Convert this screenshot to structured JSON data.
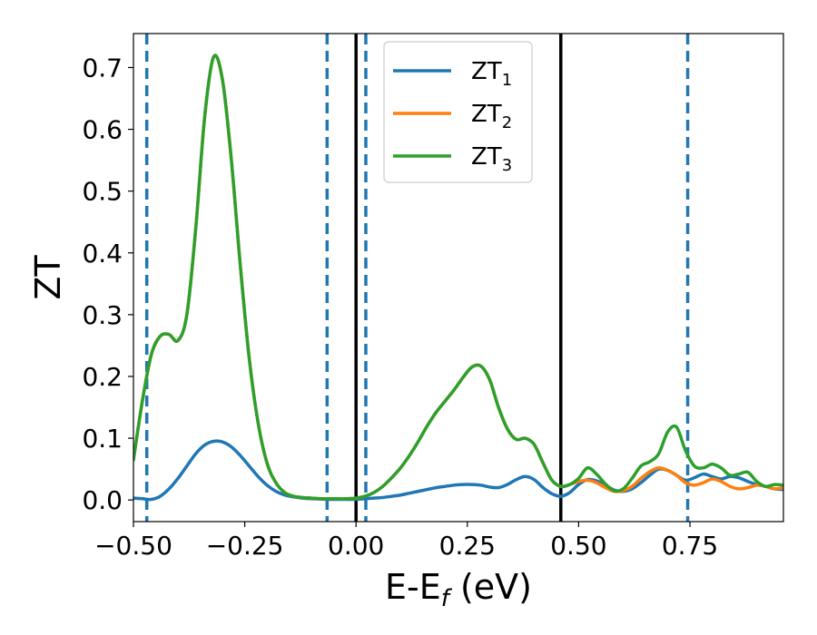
{
  "chart_data": {
    "type": "line",
    "xlabel_main": "E-E",
    "xlabel_sub": "f",
    "xlabel_tail": " (eV)",
    "ylabel": "ZT",
    "xlim": [
      -0.5,
      0.96
    ],
    "ylim": [
      -0.035,
      0.755
    ],
    "grid": false,
    "legend_position": "top-center",
    "x_ticks": [
      -0.5,
      -0.25,
      0.0,
      0.25,
      0.5,
      0.75
    ],
    "x_tick_labels": [
      "−0.50",
      "−0.25",
      "0.00",
      "0.25",
      "0.50",
      "0.75"
    ],
    "y_ticks": [
      0.0,
      0.1,
      0.2,
      0.3,
      0.4,
      0.5,
      0.6,
      0.7
    ],
    "y_tick_labels": [
      "0.0",
      "0.1",
      "0.2",
      "0.3",
      "0.4",
      "0.5",
      "0.6",
      "0.7"
    ],
    "vertical_lines": [
      {
        "x": -0.47,
        "style": "dashed",
        "color": "#1f77b4"
      },
      {
        "x": -0.065,
        "style": "dashed",
        "color": "#1f77b4"
      },
      {
        "x": 0.022,
        "style": "dashed",
        "color": "#1f77b4"
      },
      {
        "x": 0.745,
        "style": "dashed",
        "color": "#1f77b4"
      },
      {
        "x": 0.0,
        "style": "solid",
        "color": "#000000"
      },
      {
        "x": 0.46,
        "style": "solid",
        "color": "#000000"
      }
    ],
    "series": [
      {
        "name": "ZT",
        "subscript": "1",
        "color": "#1f77b4",
        "x": [
          -0.5,
          -0.48,
          -0.46,
          -0.44,
          -0.42,
          -0.4,
          -0.38,
          -0.36,
          -0.34,
          -0.32,
          -0.3,
          -0.28,
          -0.26,
          -0.24,
          -0.22,
          -0.2,
          -0.18,
          -0.16,
          -0.14,
          -0.12,
          -0.1,
          -0.08,
          -0.06,
          -0.04,
          -0.02,
          0.0,
          0.02,
          0.04,
          0.06,
          0.08,
          0.1,
          0.12,
          0.14,
          0.16,
          0.18,
          0.2,
          0.22,
          0.24,
          0.26,
          0.28,
          0.3,
          0.32,
          0.34,
          0.36,
          0.38,
          0.4,
          0.42,
          0.44,
          0.46,
          0.48,
          0.5,
          0.52,
          0.54,
          0.56,
          0.58,
          0.6,
          0.62,
          0.64,
          0.66,
          0.68,
          0.7,
          0.72,
          0.74,
          0.76,
          0.78,
          0.8,
          0.82,
          0.84,
          0.86,
          0.88,
          0.9,
          0.92,
          0.94,
          0.96
        ],
        "values": [
          0.003,
          0.002,
          0.001,
          0.006,
          0.018,
          0.035,
          0.055,
          0.075,
          0.089,
          0.095,
          0.094,
          0.086,
          0.072,
          0.055,
          0.038,
          0.024,
          0.014,
          0.008,
          0.005,
          0.003,
          0.002,
          0.0015,
          0.001,
          0.001,
          0.001,
          0.001,
          0.002,
          0.003,
          0.004,
          0.006,
          0.008,
          0.011,
          0.014,
          0.017,
          0.02,
          0.022,
          0.024,
          0.025,
          0.025,
          0.024,
          0.021,
          0.02,
          0.025,
          0.033,
          0.038,
          0.033,
          0.02,
          0.01,
          0.006,
          0.012,
          0.025,
          0.033,
          0.031,
          0.024,
          0.016,
          0.014,
          0.018,
          0.028,
          0.04,
          0.05,
          0.048,
          0.04,
          0.032,
          0.036,
          0.042,
          0.038,
          0.034,
          0.038,
          0.036,
          0.03,
          0.025,
          0.022,
          0.018,
          0.017
        ]
      },
      {
        "name": "ZT",
        "subscript": "2",
        "color": "#ff7f0e",
        "x": [
          -0.5,
          -0.48,
          -0.46,
          -0.44,
          -0.42,
          -0.4,
          -0.38,
          -0.36,
          -0.34,
          -0.32,
          -0.3,
          -0.28,
          -0.26,
          -0.24,
          -0.22,
          -0.2,
          -0.18,
          -0.16,
          -0.14,
          -0.12,
          -0.1,
          -0.08,
          -0.06,
          -0.04,
          -0.02,
          0.0,
          0.02,
          0.04,
          0.06,
          0.08,
          0.1,
          0.12,
          0.14,
          0.16,
          0.18,
          0.2,
          0.22,
          0.24,
          0.26,
          0.28,
          0.3,
          0.32,
          0.34,
          0.36,
          0.38,
          0.4,
          0.42,
          0.44,
          0.46,
          0.48,
          0.5,
          0.52,
          0.54,
          0.56,
          0.58,
          0.6,
          0.62,
          0.64,
          0.66,
          0.68,
          0.7,
          0.72,
          0.74,
          0.76,
          0.78,
          0.8,
          0.82,
          0.84,
          0.86,
          0.88,
          0.9,
          0.92,
          0.94,
          0.96
        ],
        "values": [
          0.065,
          0.16,
          0.235,
          0.265,
          0.268,
          0.258,
          0.3,
          0.44,
          0.62,
          0.717,
          0.68,
          0.55,
          0.38,
          0.23,
          0.125,
          0.06,
          0.028,
          0.012,
          0.006,
          0.004,
          0.003,
          0.002,
          0.002,
          0.002,
          0.002,
          0.003,
          0.006,
          0.012,
          0.022,
          0.036,
          0.052,
          0.072,
          0.095,
          0.12,
          0.142,
          0.16,
          0.178,
          0.198,
          0.215,
          0.217,
          0.195,
          0.15,
          0.115,
          0.098,
          0.1,
          0.09,
          0.06,
          0.032,
          0.022,
          0.025,
          0.03,
          0.032,
          0.028,
          0.02,
          0.014,
          0.015,
          0.022,
          0.035,
          0.046,
          0.052,
          0.048,
          0.04,
          0.028,
          0.024,
          0.028,
          0.034,
          0.03,
          0.022,
          0.018,
          0.02,
          0.024,
          0.022,
          0.018,
          0.02
        ]
      },
      {
        "name": "ZT",
        "subscript": "3",
        "color": "#2ca02c",
        "x": [
          -0.5,
          -0.48,
          -0.46,
          -0.44,
          -0.42,
          -0.4,
          -0.38,
          -0.36,
          -0.34,
          -0.32,
          -0.3,
          -0.28,
          -0.26,
          -0.24,
          -0.22,
          -0.2,
          -0.18,
          -0.16,
          -0.14,
          -0.12,
          -0.1,
          -0.08,
          -0.06,
          -0.04,
          -0.02,
          0.0,
          0.02,
          0.04,
          0.06,
          0.08,
          0.1,
          0.12,
          0.14,
          0.16,
          0.18,
          0.2,
          0.22,
          0.24,
          0.26,
          0.28,
          0.3,
          0.32,
          0.34,
          0.36,
          0.38,
          0.4,
          0.42,
          0.44,
          0.46,
          0.48,
          0.5,
          0.52,
          0.54,
          0.56,
          0.58,
          0.6,
          0.62,
          0.64,
          0.66,
          0.68,
          0.7,
          0.72,
          0.74,
          0.76,
          0.78,
          0.8,
          0.82,
          0.84,
          0.86,
          0.88,
          0.9,
          0.92,
          0.94,
          0.96
        ],
        "values": [
          0.065,
          0.16,
          0.235,
          0.265,
          0.268,
          0.258,
          0.3,
          0.44,
          0.62,
          0.717,
          0.68,
          0.55,
          0.38,
          0.23,
          0.125,
          0.06,
          0.028,
          0.012,
          0.006,
          0.004,
          0.003,
          0.002,
          0.002,
          0.002,
          0.002,
          0.003,
          0.006,
          0.012,
          0.022,
          0.036,
          0.052,
          0.072,
          0.095,
          0.12,
          0.142,
          0.16,
          0.178,
          0.198,
          0.215,
          0.217,
          0.195,
          0.15,
          0.115,
          0.098,
          0.1,
          0.09,
          0.06,
          0.032,
          0.022,
          0.025,
          0.035,
          0.052,
          0.042,
          0.026,
          0.015,
          0.018,
          0.035,
          0.055,
          0.062,
          0.075,
          0.11,
          0.118,
          0.08,
          0.055,
          0.052,
          0.058,
          0.052,
          0.04,
          0.042,
          0.045,
          0.03,
          0.022,
          0.025,
          0.024
        ]
      }
    ]
  }
}
